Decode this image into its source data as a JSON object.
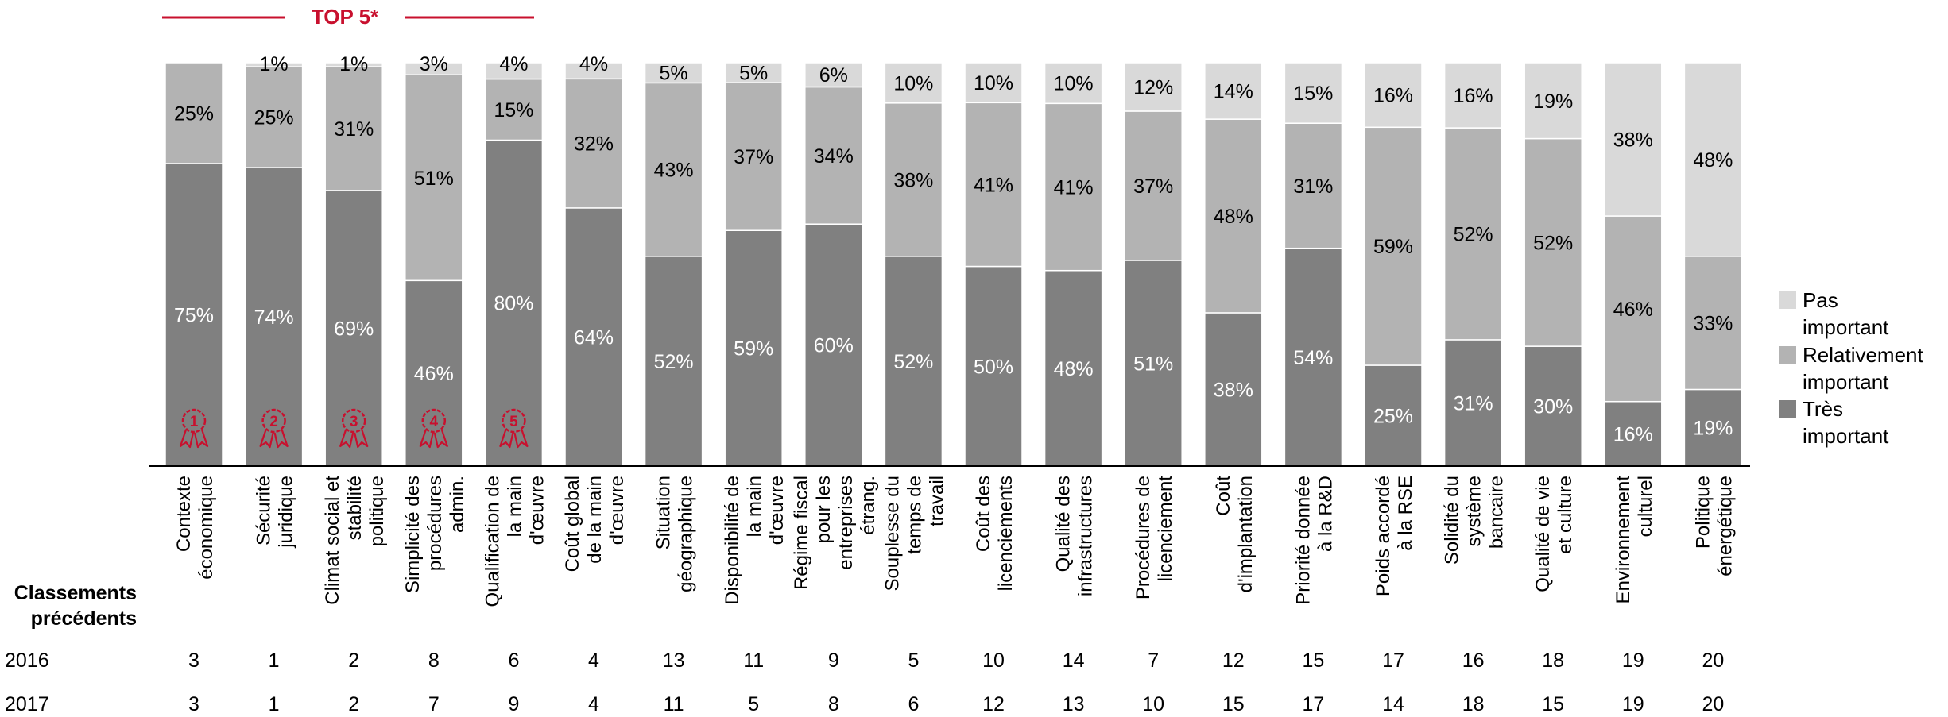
{
  "header": {
    "top5_label": "TOP 5*"
  },
  "legend": {
    "items": [
      {
        "lines": [
          "Pas",
          "important"
        ],
        "color": "#d9d9d9"
      },
      {
        "lines": [
          "Relativement",
          "important"
        ],
        "color": "#b3b3b3"
      },
      {
        "lines": [
          "Très",
          "important"
        ],
        "color": "#808080"
      }
    ]
  },
  "rankings": {
    "title_lines": [
      "Classements",
      "précédents"
    ],
    "rows": [
      {
        "label": "2016",
        "values": [
          3,
          1,
          2,
          8,
          6,
          4,
          13,
          11,
          9,
          5,
          10,
          14,
          7,
          12,
          15,
          17,
          16,
          18,
          19,
          20
        ]
      },
      {
        "label": "2017",
        "values": [
          3,
          1,
          2,
          7,
          9,
          4,
          11,
          5,
          8,
          6,
          12,
          13,
          10,
          15,
          17,
          14,
          18,
          15,
          19,
          20
        ]
      }
    ]
  },
  "badges": [
    "1",
    "2",
    "3",
    "4",
    "5"
  ],
  "colors": {
    "tres": "#808080",
    "relativement": "#b3b3b3",
    "pas": "#d9d9d9",
    "accent": "#c8102e",
    "axis": "#000000"
  },
  "chart_data": {
    "type": "bar",
    "stacked": true,
    "ylim": [
      0,
      100
    ],
    "categories": [
      [
        "Contexte",
        "économique"
      ],
      [
        "Sécurité",
        "juridique"
      ],
      [
        "Climat social et",
        "stabilité",
        "politique"
      ],
      [
        "Simplicité des",
        "procédures",
        "admin."
      ],
      [
        "Qualification de",
        "la main",
        "d'œuvre"
      ],
      [
        "Coût global",
        "de la main",
        "d'œuvre"
      ],
      [
        "Situation",
        "géographique"
      ],
      [
        "Disponibilité de",
        "la main",
        "d'œuvre"
      ],
      [
        "Régime fiscal",
        "pour les",
        "entreprises",
        "étrang."
      ],
      [
        "Souplesse du",
        "temps de",
        "travail"
      ],
      [
        "Coût des",
        "licenciements"
      ],
      [
        "Qualité des",
        "infrastructures"
      ],
      [
        "Procédures de",
        "licenciement"
      ],
      [
        "Coût",
        "d'implantation"
      ],
      [
        "Priorité donnée",
        "à la R&D"
      ],
      [
        "Poids accordé",
        "à la RSE"
      ],
      [
        "Solidité du",
        "système",
        "bancaire"
      ],
      [
        "Qualité de vie",
        "et culture"
      ],
      [
        "Environnement",
        "culturel"
      ],
      [
        "Politique",
        "énergétique"
      ]
    ],
    "series": [
      {
        "name": "Très important",
        "values": [
          75,
          74,
          69,
          46,
          80,
          64,
          52,
          59,
          60,
          52,
          50,
          48,
          51,
          38,
          54,
          25,
          31,
          30,
          16,
          19
        ]
      },
      {
        "name": "Relativement important",
        "values": [
          25,
          25,
          31,
          51,
          15,
          32,
          43,
          37,
          34,
          38,
          41,
          41,
          37,
          48,
          31,
          59,
          52,
          52,
          46,
          33
        ]
      },
      {
        "name": "Pas important",
        "values": [
          0,
          1,
          1,
          3,
          4,
          4,
          5,
          5,
          6,
          10,
          10,
          10,
          12,
          14,
          15,
          16,
          16,
          19,
          38,
          48
        ]
      }
    ]
  }
}
